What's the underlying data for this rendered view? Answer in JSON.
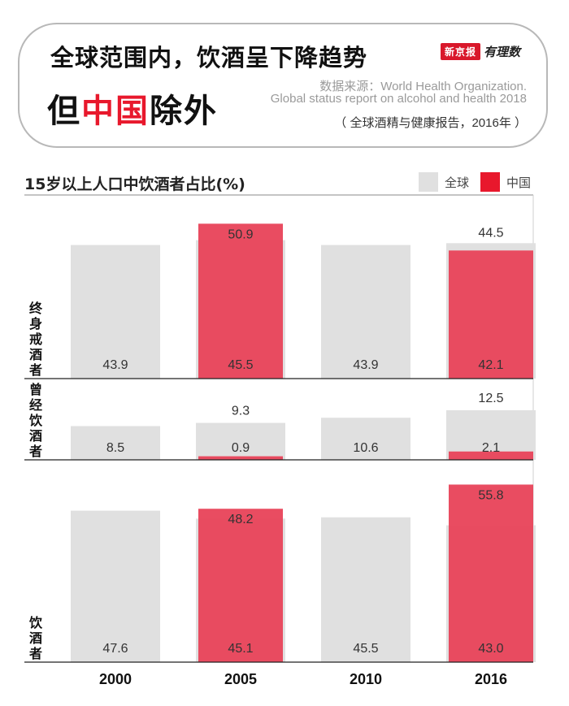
{
  "header": {
    "title_line1": "全球范围内，饮酒呈下降趋势",
    "title_line2_a": "但",
    "title_line2_red": "中国",
    "title_line2_b": "除外",
    "logo_badge": "新京报",
    "logo_script": "有理数",
    "source_line1": "数据来源：World Health Organization.",
    "source_line2": "Global status report on alcohol and health 2018",
    "source_line3": "（ 全球酒精与健康报告，2016年 ）"
  },
  "colors": {
    "global": "#e0e0e0",
    "china": "#e8465c",
    "accent_red": "#e8182c"
  },
  "chart_data": {
    "type": "bar",
    "title": "15岁以上人口中饮酒者占比(%)",
    "categories": [
      "2000",
      "2005",
      "2010",
      "2016"
    ],
    "legend": [
      "全球",
      "中国"
    ],
    "legend_placement": "top-right",
    "panels": [
      {
        "name": "终身戒酒者",
        "ylim": [
          0,
          55
        ],
        "series": [
          {
            "name": "全球",
            "values": [
              43.9,
              45.5,
              43.9,
              44.5
            ]
          },
          {
            "name": "中国",
            "values": [
              null,
              50.9,
              null,
              42.1
            ]
          }
        ],
        "label_pairs": [
          [
            "43.9"
          ],
          [
            "50.9",
            "45.5"
          ],
          [
            "43.9"
          ],
          [
            "44.5",
            "42.1"
          ]
        ]
      },
      {
        "name": "曾经饮酒者",
        "ylim": [
          0,
          13.5
        ],
        "series": [
          {
            "name": "全球",
            "values": [
              8.5,
              9.3,
              10.6,
              12.5
            ]
          },
          {
            "name": "中国",
            "values": [
              null,
              0.9,
              null,
              2.1
            ]
          }
        ],
        "label_pairs": [
          [
            "8.5"
          ],
          [
            "9.3",
            "0.9"
          ],
          [
            "10.6"
          ],
          [
            "12.5",
            "2.1"
          ]
        ]
      },
      {
        "name": "饮酒者",
        "ylim": [
          0,
          60
        ],
        "series": [
          {
            "name": "全球",
            "values": [
              47.6,
              45.1,
              45.5,
              43.0
            ]
          },
          {
            "name": "中国",
            "values": [
              null,
              48.2,
              null,
              55.8
            ]
          }
        ],
        "label_pairs": [
          [
            "47.6"
          ],
          [
            "48.2",
            "45.1"
          ],
          [
            "45.5"
          ],
          [
            "55.8",
            "43.0"
          ]
        ]
      }
    ]
  }
}
